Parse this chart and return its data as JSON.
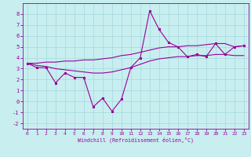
{
  "xlabel": "Windchill (Refroidissement éolien,°C)",
  "background_color": "#c8eef0",
  "grid_color": "#a8dce0",
  "line_color": "#990099",
  "x_data": [
    0,
    1,
    2,
    3,
    4,
    5,
    6,
    7,
    8,
    9,
    10,
    11,
    12,
    13,
    14,
    15,
    16,
    17,
    18,
    19,
    20,
    21,
    22,
    23
  ],
  "y_main": [
    3.5,
    3.1,
    3.1,
    1.7,
    2.6,
    2.2,
    2.2,
    -0.5,
    0.3,
    -0.9,
    0.2,
    3.1,
    4.0,
    8.3,
    6.6,
    5.4,
    5.0,
    4.1,
    4.3,
    4.1,
    5.3,
    4.3,
    5.0,
    5.1
  ],
  "y_upper": [
    3.5,
    3.5,
    3.6,
    3.6,
    3.7,
    3.7,
    3.8,
    3.8,
    3.9,
    4.0,
    4.2,
    4.3,
    4.5,
    4.7,
    4.9,
    5.0,
    5.0,
    5.1,
    5.1,
    5.2,
    5.3,
    5.3,
    5.0,
    5.1
  ],
  "y_lower": [
    3.5,
    3.3,
    3.2,
    3.0,
    2.9,
    2.8,
    2.7,
    2.6,
    2.6,
    2.7,
    2.9,
    3.1,
    3.4,
    3.7,
    3.9,
    4.0,
    4.1,
    4.1,
    4.2,
    4.2,
    4.3,
    4.3,
    4.2,
    4.2
  ],
  "ylim": [
    -2.5,
    9.0
  ],
  "xlim": [
    -0.5,
    23.5
  ],
  "yticks": [
    -2,
    -1,
    0,
    1,
    2,
    3,
    4,
    5,
    6,
    7,
    8
  ],
  "xticks": [
    0,
    1,
    2,
    3,
    4,
    5,
    6,
    7,
    8,
    9,
    10,
    11,
    12,
    13,
    14,
    15,
    16,
    17,
    18,
    19,
    20,
    21,
    22,
    23
  ],
  "lw": 0.8,
  "ms": 2.0
}
